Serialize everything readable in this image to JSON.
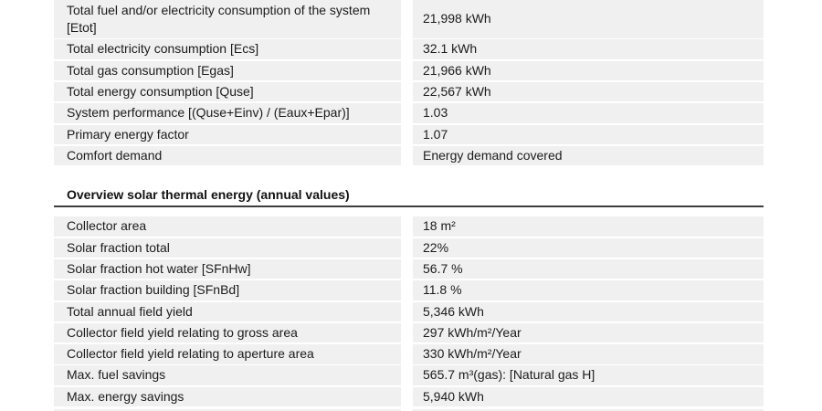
{
  "colors": {
    "page_background": "#ffffff",
    "row_background": "#f0f0f0",
    "text": "#1b1b1b",
    "section_rule": "#3d3d3d"
  },
  "system_results_table": {
    "rows": [
      {
        "label": "Total fuel and/or electricity consumption of the system [Etot]",
        "value": "21,998 kWh"
      },
      {
        "label": "Total electricity consumption [Ecs]",
        "value": "32.1 kWh"
      },
      {
        "label": "Total gas consumption [Egas]",
        "value": "21,966 kWh"
      },
      {
        "label": "Total energy consumption [Quse]",
        "value": "22,567 kWh"
      },
      {
        "label": "System performance [(Quse+Einv) / (Eaux+Epar)]",
        "value": "1.03"
      },
      {
        "label": "Primary energy factor",
        "value": "1.07"
      },
      {
        "label": "Comfort demand",
        "value": "Energy demand covered"
      }
    ]
  },
  "section": {
    "title": "Overview solar thermal energy (annual values)"
  },
  "solar_thermal_table": {
    "rows": [
      {
        "label": "Collector area",
        "value": "18 m²"
      },
      {
        "label": "Solar fraction total",
        "value": "22%"
      },
      {
        "label": "Solar fraction hot water [SFnHw]",
        "value": "56.7 %"
      },
      {
        "label": "Solar fraction building [SFnBd]",
        "value": "11.8 %"
      },
      {
        "label": "Total annual field yield",
        "value": "5,346 kWh"
      },
      {
        "label": "Collector field yield relating to gross area",
        "value": "297 kWh/m²/Year"
      },
      {
        "label": "Collector field yield relating to aperture area",
        "value": "330 kWh/m²/Year"
      },
      {
        "label": "Max. fuel savings",
        "value": "565.7 m³(gas): [Natural gas H]"
      },
      {
        "label": "Max. energy savings",
        "value": "5,940 kWh"
      }
    ]
  }
}
